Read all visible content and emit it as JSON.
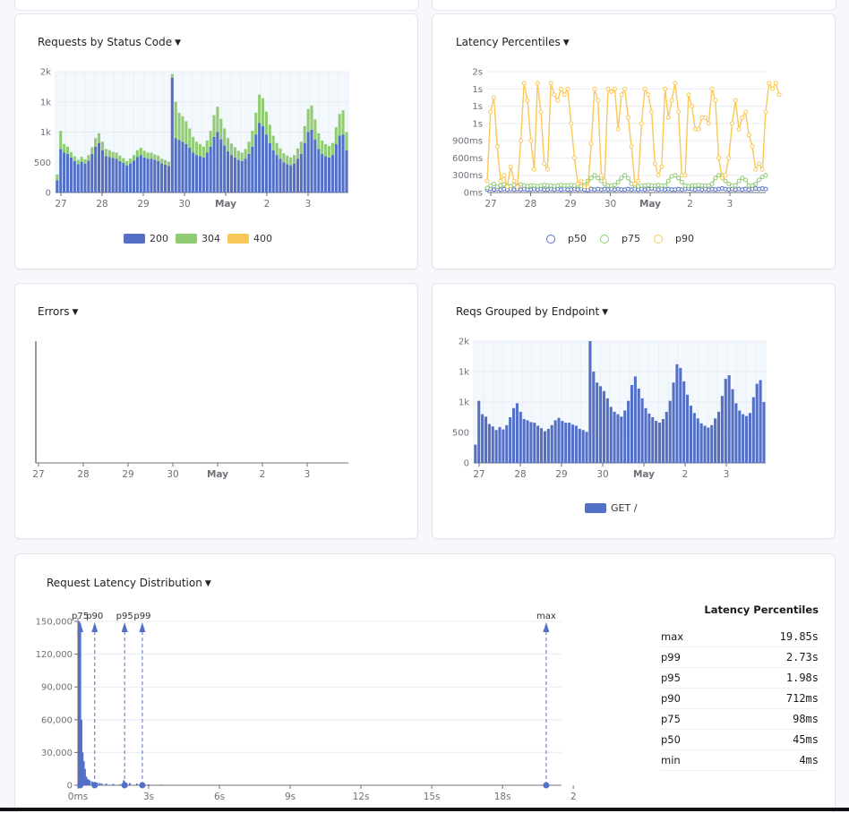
{
  "colors": {
    "blue": "#5470c6",
    "green": "#91cc75",
    "yellow": "#fac858",
    "grid": "#e8ecf2",
    "plotbg": "#f3f8fd",
    "axis": "#6e7079"
  },
  "xticks": [
    "27",
    "28",
    "29",
    "30",
    "May",
    "2",
    "3"
  ],
  "cards": {
    "status": {
      "title": "Requests by Status Code"
    },
    "latency": {
      "title": "Latency Percentiles"
    },
    "errors": {
      "title": "Errors"
    },
    "endpoint": {
      "title": "Reqs Grouped by Endpoint"
    },
    "distribution": {
      "title": "Request Latency Distribution"
    }
  },
  "chart_data": [
    {
      "type": "bar",
      "title": "Requests by Status Code",
      "ytick_labels": [
        "0",
        "500",
        "1k",
        "1k",
        "2k"
      ],
      "ylim": [
        0,
        2000
      ],
      "legend_placement": "bottom",
      "series": [
        {
          "name": "200",
          "color": "#5470c6",
          "values": [
            200,
            720,
            660,
            640,
            580,
            520,
            470,
            510,
            480,
            530,
            640,
            760,
            820,
            700,
            600,
            590,
            570,
            560,
            520,
            490,
            450,
            480,
            530,
            590,
            620,
            580,
            560,
            560,
            540,
            520,
            480,
            460,
            440,
            1900,
            900,
            870,
            840,
            800,
            740,
            660,
            620,
            600,
            580,
            660,
            760,
            920,
            1000,
            880,
            780,
            680,
            620,
            580,
            540,
            520,
            560,
            640,
            760,
            960,
            1150,
            1100,
            960,
            820,
            700,
            620,
            560,
            500,
            470,
            450,
            480,
            560,
            640,
            820,
            1000,
            1040,
            880,
            720,
            640,
            600,
            580,
            620,
            800,
            940,
            960,
            700
          ]
        },
        {
          "name": "304",
          "color": "#91cc75",
          "values": [
            100,
            300,
            140,
            120,
            90,
            80,
            70,
            80,
            70,
            90,
            110,
            140,
            160,
            140,
            120,
            110,
            100,
            100,
            90,
            80,
            70,
            80,
            90,
            110,
            120,
            110,
            100,
            100,
            90,
            90,
            80,
            80,
            70,
            60,
            600,
            450,
            420,
            380,
            320,
            260,
            220,
            200,
            180,
            200,
            260,
            360,
            420,
            340,
            280,
            220,
            190,
            170,
            150,
            140,
            160,
            200,
            260,
            360,
            470,
            460,
            380,
            300,
            240,
            200,
            170,
            150,
            140,
            130,
            140,
            170,
            200,
            280,
            380,
            400,
            330,
            260,
            220,
            200,
            190,
            200,
            280,
            360,
            400,
            300
          ]
        },
        {
          "name": "400",
          "color": "#fac858",
          "values": [
            0,
            0,
            0,
            0,
            0,
            0,
            0,
            0,
            0,
            0,
            0,
            0,
            0,
            0,
            0,
            0,
            0,
            0,
            0,
            0,
            0,
            0,
            0,
            0,
            0,
            0,
            0,
            0,
            0,
            0,
            0,
            0,
            0,
            0,
            0,
            0,
            0,
            0,
            0,
            0,
            0,
            0,
            0,
            0,
            0,
            0,
            0,
            0,
            0,
            0,
            0,
            0,
            0,
            0,
            0,
            0,
            0,
            0,
            0,
            0,
            0,
            0,
            0,
            0,
            0,
            0,
            0,
            0,
            0,
            0,
            0,
            0,
            0,
            0,
            0,
            0,
            0,
            0,
            0,
            0,
            0,
            0,
            0,
            0
          ]
        }
      ]
    },
    {
      "type": "line",
      "title": "Latency Percentiles",
      "ytick_labels": [
        "0ms",
        "300ms",
        "600ms",
        "900ms",
        "1s",
        "1s",
        "1s",
        "2s"
      ],
      "ylim": [
        0,
        2.1
      ],
      "legend_placement": "bottom",
      "series": [
        {
          "name": "p50",
          "color": "#5470c6",
          "values": [
            0.05,
            0.06,
            0.05,
            0.06,
            0.05,
            0.06,
            0.05,
            0.06,
            0.05,
            0.06,
            0.05,
            0.06,
            0.05,
            0.05,
            0.06,
            0.05,
            0.06,
            0.05,
            0.05,
            0.06,
            0.05,
            0.06,
            0.05,
            0.06,
            0.05,
            0.05,
            0.06,
            0.05,
            0.06,
            0.05,
            0.04,
            0.06,
            0.05,
            0.06,
            0.05,
            0.06,
            0.05,
            0.06,
            0.05,
            0.06,
            0.05,
            0.05,
            0.06,
            0.05,
            0.06,
            0.05,
            0.06,
            0.05,
            0.06,
            0.07,
            0.06,
            0.05,
            0.06,
            0.05,
            0.06,
            0.05,
            0.05,
            0.06,
            0.05,
            0.06,
            0.07,
            0.06,
            0.05,
            0.06,
            0.05,
            0.06,
            0.05,
            0.06,
            0.05,
            0.06,
            0.07,
            0.06,
            0.05,
            0.06,
            0.05,
            0.06,
            0.05,
            0.06,
            0.05,
            0.06,
            0.07,
            0.06,
            0.07,
            0.06
          ]
        },
        {
          "name": "p75",
          "color": "#91cc75",
          "values": [
            0.08,
            0.12,
            0.15,
            0.1,
            0.12,
            0.14,
            0.12,
            0.11,
            0.13,
            0.12,
            0.14,
            0.12,
            0.11,
            0.12,
            0.12,
            0.11,
            0.12,
            0.13,
            0.12,
            0.12,
            0.11,
            0.12,
            0.13,
            0.12,
            0.12,
            0.13,
            0.12,
            0.12,
            0.11,
            0.13,
            0.2,
            0.25,
            0.3,
            0.25,
            0.2,
            0.15,
            0.12,
            0.12,
            0.13,
            0.18,
            0.25,
            0.3,
            0.25,
            0.15,
            0.12,
            0.11,
            0.12,
            0.12,
            0.13,
            0.12,
            0.12,
            0.13,
            0.12,
            0.12,
            0.2,
            0.28,
            0.3,
            0.25,
            0.18,
            0.12,
            0.11,
            0.12,
            0.12,
            0.13,
            0.12,
            0.12,
            0.12,
            0.15,
            0.25,
            0.3,
            0.3,
            0.2,
            0.15,
            0.12,
            0.12,
            0.2,
            0.25,
            0.22,
            0.12,
            0.12,
            0.15,
            0.22,
            0.27,
            0.3
          ]
        },
        {
          "name": "p90",
          "color": "#fac858",
          "values": [
            0.2,
            1.4,
            1.65,
            0.8,
            0.2,
            0.3,
            0.1,
            0.45,
            0.2,
            0.1,
            0.9,
            1.9,
            1.6,
            0.9,
            0.4,
            1.9,
            1.4,
            0.5,
            0.4,
            1.9,
            1.7,
            1.6,
            1.8,
            1.7,
            1.8,
            1.2,
            0.6,
            0.15,
            0.2,
            0.1,
            0.1,
            0.85,
            1.8,
            1.6,
            0.3,
            0.2,
            1.8,
            1.75,
            1.8,
            1.1,
            1.7,
            1.8,
            1.3,
            0.8,
            0.15,
            0.2,
            1.2,
            1.8,
            1.7,
            1.4,
            0.5,
            0.3,
            0.45,
            1.8,
            1.3,
            1.6,
            1.9,
            1.4,
            0.3,
            0.3,
            1.7,
            1.5,
            1.1,
            1.1,
            1.3,
            1.3,
            1.2,
            1.8,
            1.6,
            0.6,
            0.25,
            0.3,
            0.6,
            1.2,
            1.6,
            1.1,
            1.3,
            1.4,
            1.0,
            0.8,
            0.4,
            0.5,
            0.4,
            1.4,
            1.9,
            1.8,
            1.9,
            1.7
          ]
        }
      ]
    },
    {
      "type": "bar",
      "title": "Errors",
      "series": []
    },
    {
      "type": "bar",
      "title": "Reqs Grouped by Endpoint",
      "ytick_labels": [
        "0",
        "500",
        "1k",
        "1k",
        "2k"
      ],
      "ylim": [
        0,
        2000
      ],
      "legend_placement": "bottom",
      "series": [
        {
          "name": "GET /",
          "color": "#5470c6",
          "values": [
            300,
            1020,
            800,
            760,
            640,
            600,
            540,
            590,
            550,
            620,
            750,
            900,
            980,
            840,
            720,
            700,
            670,
            660,
            610,
            570,
            520,
            560,
            620,
            700,
            740,
            690,
            660,
            660,
            630,
            610,
            560,
            540,
            510,
            2000,
            1500,
            1320,
            1260,
            1180,
            1060,
            920,
            840,
            800,
            760,
            860,
            1020,
            1280,
            1420,
            1220,
            1060,
            900,
            810,
            750,
            690,
            660,
            720,
            840,
            1020,
            1320,
            1620,
            1560,
            1340,
            1120,
            940,
            820,
            730,
            650,
            610,
            580,
            620,
            730,
            840,
            1100,
            1380,
            1440,
            1210,
            980,
            860,
            800,
            770,
            820,
            1080,
            1300,
            1360,
            1000
          ]
        }
      ]
    },
    {
      "type": "bar",
      "title": "Request Latency Distribution",
      "xtick_labels": [
        "0ms",
        "3s",
        "6s",
        "9s",
        "12s",
        "15s",
        "18s",
        "2"
      ],
      "ytick_labels": [
        "0",
        "30,000",
        "60,000",
        "90,000",
        "120,000",
        "150,000"
      ],
      "xlim": [
        0,
        20.5
      ],
      "ylim": [
        0,
        150000
      ],
      "series": [
        {
          "name": "",
          "color": "#5470c6",
          "x": [
            0.05,
            0.1,
            0.15,
            0.2,
            0.25,
            0.3,
            0.35,
            0.4,
            0.45,
            0.5,
            0.6,
            0.7,
            0.8,
            0.9,
            1.0,
            1.2,
            1.5,
            1.8,
            1.95,
            2.05,
            2.2,
            2.5,
            2.7,
            2.8,
            3.0,
            3.5,
            4.0,
            5.0,
            19.85
          ],
          "values": [
            150000,
            148000,
            60000,
            30000,
            22000,
            15000,
            8000,
            6000,
            5000,
            4500,
            3500,
            3000,
            2500,
            2000,
            1800,
            1500,
            1200,
            1100,
            4500,
            2500,
            2000,
            1500,
            1200,
            1000,
            800,
            600,
            400,
            200,
            200
          ]
        }
      ],
      "markers": [
        {
          "label": "p75",
          "x": 0.098
        },
        {
          "label": "p90",
          "x": 0.712
        },
        {
          "label": "p95",
          "x": 1.98
        },
        {
          "label": "p99",
          "x": 2.73
        },
        {
          "label": "max",
          "x": 19.85
        }
      ]
    }
  ],
  "percentile_table": {
    "title": "Latency Percentiles",
    "rows": [
      {
        "k": "max",
        "v": "19.85s"
      },
      {
        "k": "p99",
        "v": "2.73s"
      },
      {
        "k": "p95",
        "v": "1.98s"
      },
      {
        "k": "p90",
        "v": "712ms"
      },
      {
        "k": "p75",
        "v": "98ms"
      },
      {
        "k": "p50",
        "v": "45ms"
      },
      {
        "k": "min",
        "v": "4ms"
      }
    ]
  }
}
